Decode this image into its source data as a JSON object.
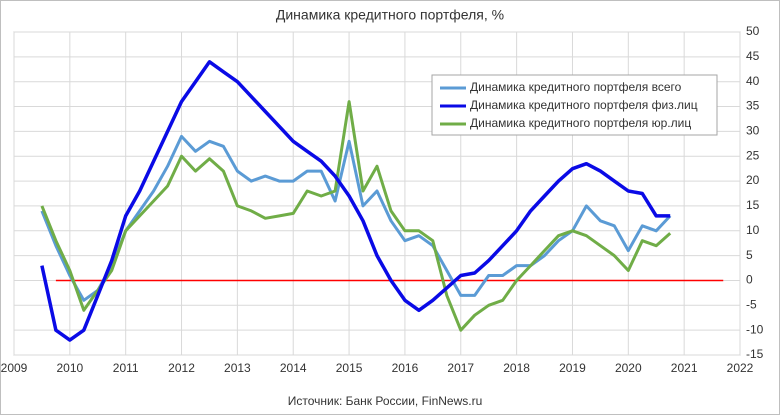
{
  "chart_data": {
    "type": "line",
    "title": "Динамика  кредитного портфеля, %",
    "source": "Источник: Банк России, FinNews.ru",
    "x": [
      2009.5,
      2009.75,
      2010,
      2010.25,
      2010.5,
      2010.75,
      2011,
      2011.25,
      2011.5,
      2011.75,
      2012,
      2012.25,
      2012.5,
      2012.75,
      2013,
      2013.25,
      2013.5,
      2013.75,
      2014,
      2014.25,
      2014.5,
      2014.75,
      2015,
      2015.25,
      2015.5,
      2015.75,
      2016,
      2016.25,
      2016.5,
      2016.75,
      2017,
      2017.25,
      2017.5,
      2017.75,
      2018,
      2018.25,
      2018.5,
      2018.75,
      2019,
      2019.25,
      2019.5,
      2019.75,
      2020,
      2020.25,
      2020.5,
      2020.75
    ],
    "series": [
      {
        "name": "Динамика кредитного портфеля всего",
        "color": "#5b9bd5",
        "values": [
          14,
          7,
          1,
          -4,
          -2,
          3,
          10,
          14,
          18,
          23,
          29,
          26,
          28,
          27,
          22,
          20,
          21,
          20,
          20,
          22,
          22,
          16,
          28,
          15,
          18,
          12,
          8,
          9,
          7,
          2,
          -3,
          -3,
          1,
          1,
          3,
          3,
          5,
          8,
          10,
          15,
          12,
          11,
          6,
          11,
          10,
          13
        ]
      },
      {
        "name": "Динамика кредитного портфеля физ.лиц",
        "color": "#0a0ae6",
        "values": [
          3,
          -10,
          -12,
          -10,
          -3,
          4,
          13,
          18,
          24,
          30,
          36,
          40,
          44,
          42,
          40,
          37,
          34,
          31,
          28,
          26,
          24,
          21,
          17,
          12,
          5,
          0,
          -4,
          -6,
          -4,
          -1.5,
          1,
          1.5,
          4,
          7,
          10,
          14,
          17,
          20,
          22.5,
          23.5,
          22,
          20,
          18,
          17.5,
          13,
          13
        ]
      },
      {
        "name": "Динамика кредитного портфеля юр.лиц",
        "color": "#70ad47",
        "values": [
          15,
          8,
          2,
          -6,
          -2,
          2,
          10,
          13,
          16,
          19,
          25,
          22,
          24.5,
          22,
          15,
          14,
          12.5,
          13,
          13.5,
          18,
          17,
          18,
          36,
          18,
          23,
          14,
          10,
          10,
          8,
          -3,
          -10,
          -7,
          -5,
          -4,
          0,
          3,
          6,
          9,
          10,
          9,
          7,
          5,
          2,
          8,
          7,
          9.5
        ]
      }
    ],
    "reference_line": {
      "value": 0,
      "color": "#ff0000",
      "x": [
        2009.75,
        2021.7
      ]
    },
    "xlim": [
      2009,
      2022
    ],
    "xticks": [
      2009,
      2010,
      2011,
      2012,
      2013,
      2014,
      2015,
      2016,
      2017,
      2018,
      2019,
      2020,
      2021,
      2022
    ],
    "ylim": [
      -15,
      50
    ],
    "yticks": [
      -15,
      -10,
      -5,
      0,
      5,
      10,
      15,
      20,
      25,
      30,
      35,
      40,
      45,
      50
    ],
    "grid": true
  }
}
